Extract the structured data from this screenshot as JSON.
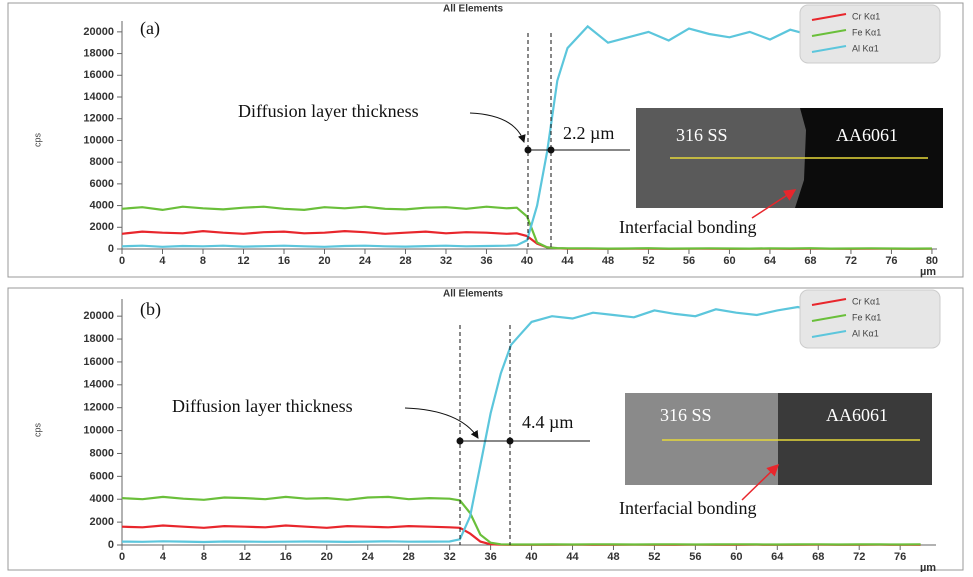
{
  "chart_data": [
    {
      "type": "line",
      "title": "All Elements",
      "y_label": "cps",
      "x_label": "µm",
      "panel_label": "(a)",
      "annotation": "Diffusion layer thickness",
      "measurement": "2.2 µm",
      "inset_labels": [
        "316 SS",
        "AA6061"
      ],
      "inset_caption": "Interfacial bonding",
      "legend": "upper right",
      "x": [
        0,
        2,
        4,
        6,
        8,
        10,
        12,
        14,
        16,
        18,
        20,
        22,
        24,
        26,
        28,
        30,
        32,
        34,
        36,
        38,
        39,
        40,
        41,
        42,
        43,
        44,
        46,
        48,
        50,
        52,
        54,
        56,
        58,
        60,
        62,
        64,
        66,
        68,
        70,
        72,
        74,
        76,
        78,
        80
      ],
      "series": [
        {
          "name": "Cr Kα1",
          "color": "#e8262c",
          "values": [
            1400,
            1600,
            1500,
            1450,
            1650,
            1500,
            1400,
            1550,
            1600,
            1450,
            1500,
            1650,
            1550,
            1400,
            1500,
            1600,
            1450,
            1550,
            1500,
            1400,
            1450,
            1200,
            500,
            150,
            60,
            40,
            30,
            20,
            30,
            40,
            20,
            30,
            30,
            20,
            30,
            40,
            20,
            30,
            30,
            20,
            30,
            40,
            20,
            30
          ]
        },
        {
          "name": "Fe Kα1",
          "color": "#6abf3a",
          "values": [
            3700,
            3850,
            3600,
            3900,
            3750,
            3650,
            3800,
            3900,
            3700,
            3600,
            3850,
            3750,
            3900,
            3700,
            3650,
            3800,
            3850,
            3700,
            3900,
            3750,
            3800,
            3000,
            600,
            150,
            80,
            60,
            60,
            40,
            50,
            70,
            40,
            50,
            60,
            50,
            40,
            60,
            50,
            70,
            40,
            50,
            60,
            50,
            40,
            50
          ]
        },
        {
          "name": "Al Kα1",
          "color": "#5cc6dc",
          "values": [
            250,
            300,
            200,
            280,
            250,
            300,
            220,
            260,
            300,
            250,
            200,
            280,
            300,
            250,
            220,
            270,
            300,
            250,
            280,
            300,
            350,
            800,
            4000,
            9000,
            15500,
            18500,
            20500,
            19000,
            19500,
            20000,
            19200,
            20300,
            19800,
            19500,
            20000,
            19300,
            20200,
            19700,
            19900,
            20400,
            19600,
            20000,
            19400,
            19800
          ]
        }
      ],
      "xlim": [
        0,
        80.5
      ],
      "xticks": [
        0,
        4,
        8,
        12,
        16,
        20,
        24,
        28,
        32,
        36,
        40,
        44,
        48,
        52,
        56,
        60,
        64,
        68,
        72,
        76,
        80
      ],
      "ylim": [
        0,
        21000
      ],
      "yticks": [
        0,
        2000,
        4000,
        6000,
        8000,
        10000,
        12000,
        14000,
        16000,
        18000,
        20000
      ]
    },
    {
      "type": "line",
      "title": "All Elements",
      "y_label": "cps",
      "x_label": "µm",
      "panel_label": "(b)",
      "annotation": "Diffusion layer thickness",
      "measurement": "4.4 µm",
      "inset_labels": [
        "316 SS",
        "AA6061"
      ],
      "inset_caption": "Interfacial bonding",
      "legend": "upper right",
      "x": [
        0,
        2,
        4,
        6,
        8,
        10,
        12,
        14,
        16,
        18,
        20,
        22,
        24,
        26,
        28,
        30,
        32,
        33,
        34,
        35,
        36,
        37,
        38,
        39,
        40,
        42,
        44,
        46,
        48,
        50,
        52,
        54,
        56,
        58,
        60,
        62,
        64,
        66,
        68,
        70,
        72,
        74,
        76,
        78
      ],
      "series": [
        {
          "name": "Cr Kα1",
          "color": "#e8262c",
          "values": [
            1600,
            1550,
            1700,
            1600,
            1500,
            1650,
            1600,
            1550,
            1700,
            1600,
            1500,
            1650,
            1600,
            1550,
            1650,
            1600,
            1550,
            1500,
            1000,
            300,
            60,
            30,
            20,
            20,
            20,
            20,
            30,
            20,
            20,
            30,
            20,
            20,
            30,
            20,
            20,
            30,
            20,
            20,
            30,
            20,
            20,
            30,
            20,
            20
          ]
        },
        {
          "name": "Fe Kα1",
          "color": "#6abf3a",
          "values": [
            4100,
            4000,
            4200,
            4050,
            3950,
            4150,
            4100,
            4000,
            4200,
            4050,
            4100,
            3950,
            4150,
            4200,
            4000,
            4100,
            4050,
            3900,
            2800,
            900,
            200,
            60,
            40,
            40,
            40,
            50,
            40,
            60,
            50,
            40,
            50,
            60,
            40,
            50,
            60,
            50,
            40,
            50,
            60,
            40,
            50,
            50,
            40,
            60
          ]
        },
        {
          "name": "Al Kα1",
          "color": "#5cc6dc",
          "values": [
            300,
            280,
            320,
            300,
            260,
            310,
            300,
            280,
            290,
            310,
            300,
            270,
            300,
            320,
            290,
            300,
            310,
            500,
            2500,
            7000,
            11500,
            15000,
            17500,
            18500,
            19500,
            20000,
            19800,
            20300,
            20100,
            19900,
            20500,
            20200,
            20000,
            20600,
            20300,
            20100,
            20500,
            20800,
            20400,
            20600,
            20900,
            20500,
            21000,
            20800
          ]
        }
      ],
      "xlim": [
        0,
        79.5
      ],
      "xticks": [
        0,
        4,
        8,
        12,
        16,
        20,
        24,
        28,
        32,
        36,
        40,
        44,
        48,
        52,
        56,
        60,
        64,
        68,
        72,
        76
      ],
      "ylim": [
        0,
        21500
      ],
      "yticks": [
        0,
        2000,
        4000,
        6000,
        8000,
        10000,
        12000,
        14000,
        16000,
        18000,
        20000
      ]
    }
  ]
}
